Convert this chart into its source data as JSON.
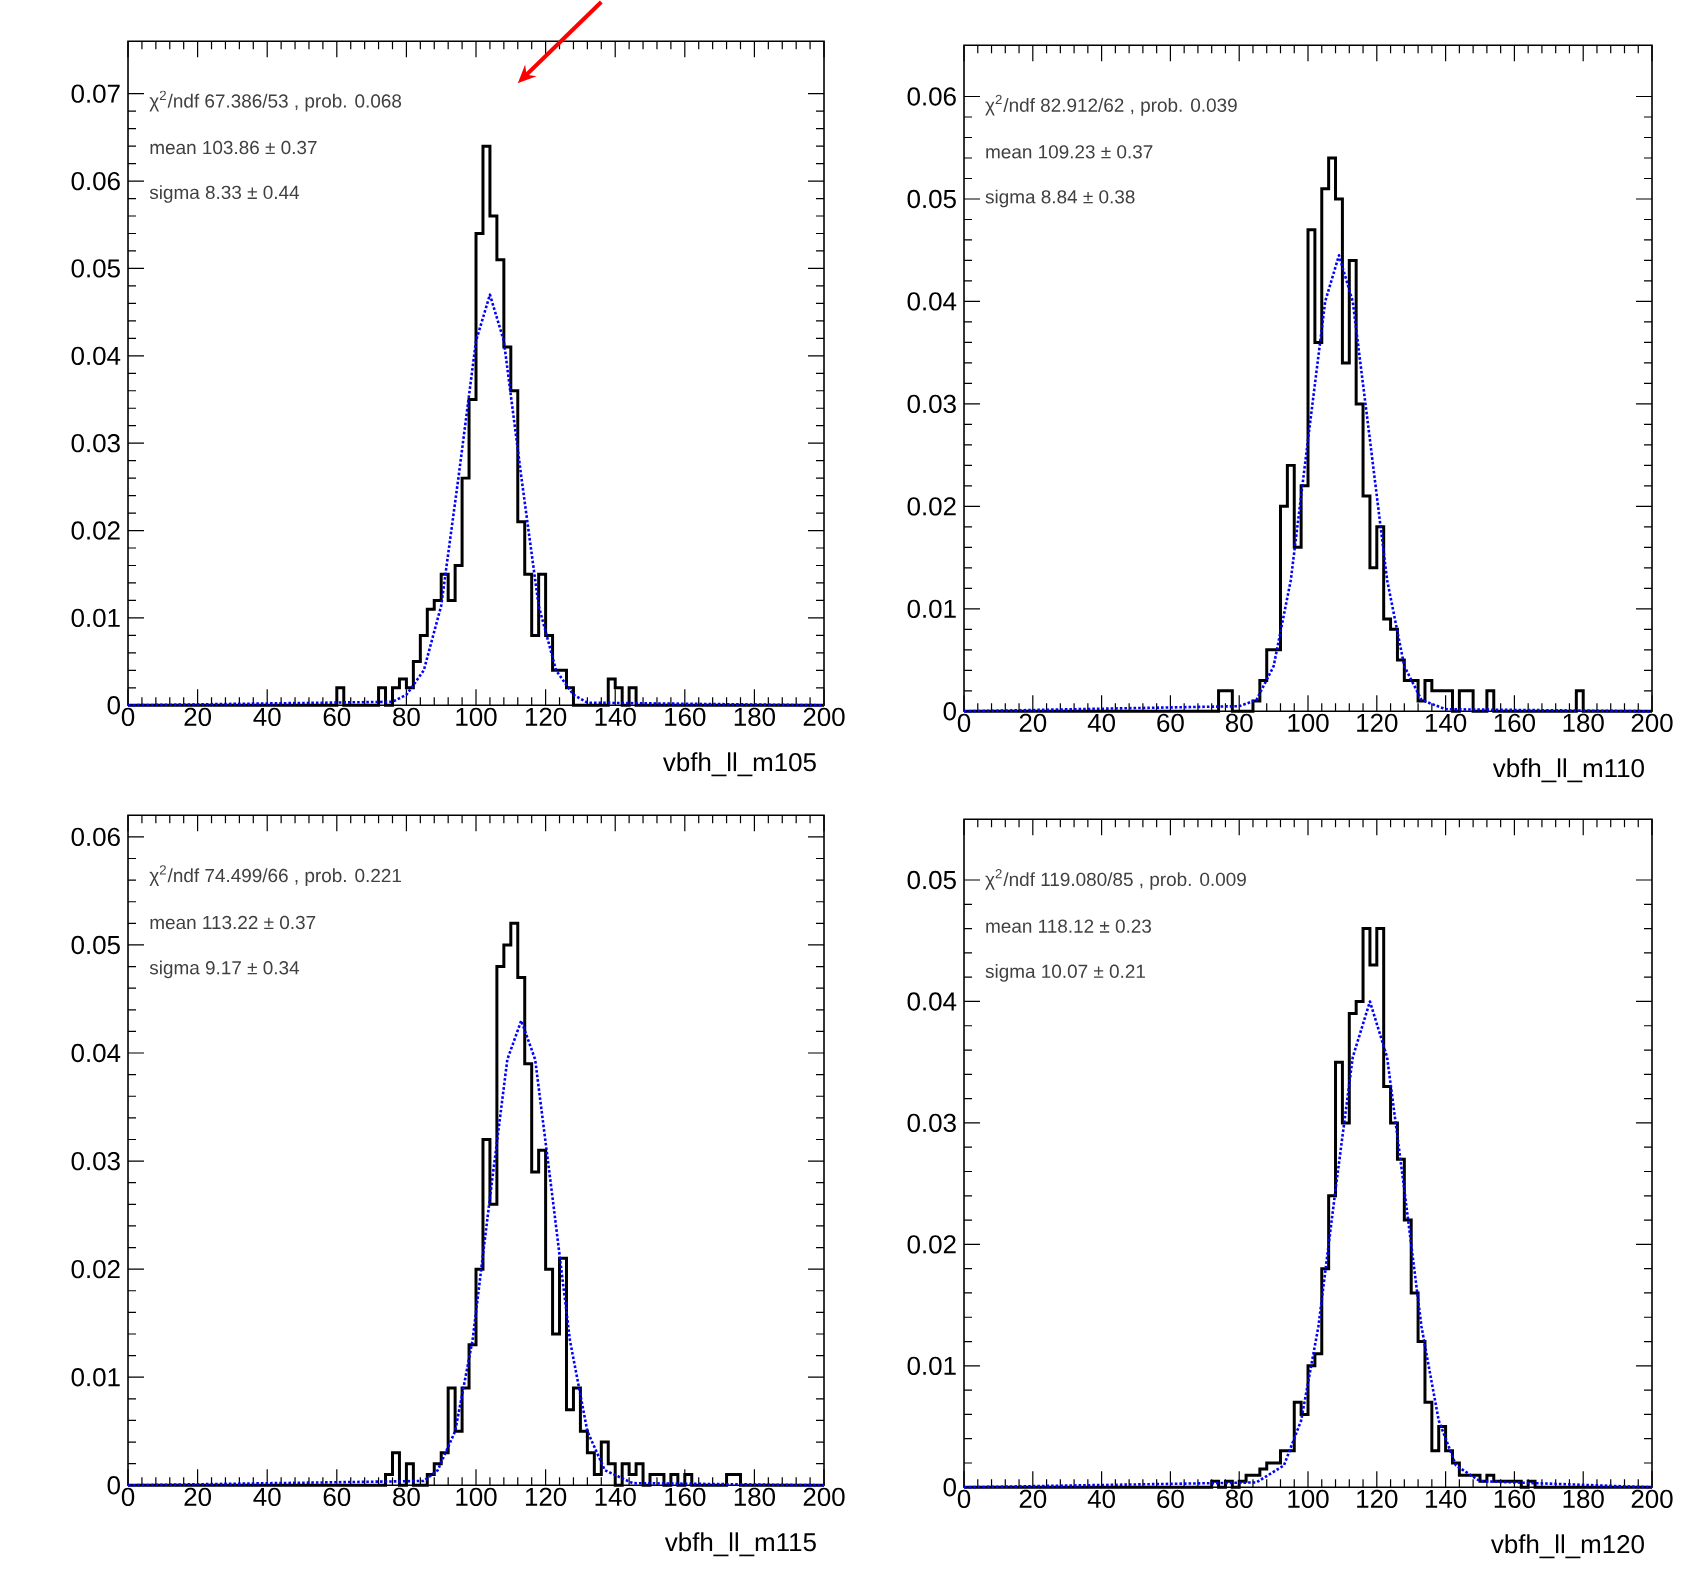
{
  "chart_data": [
    {
      "type": "histogram",
      "xlabel": "vbfh_ll_m105",
      "xlim": [
        0,
        200
      ],
      "xticks": [
        0,
        20,
        40,
        60,
        80,
        100,
        120,
        140,
        160,
        180,
        200
      ],
      "ylim": [
        0,
        0.076
      ],
      "yticks": [
        0,
        0.01,
        0.02,
        0.03,
        0.04,
        0.05,
        0.06,
        0.07
      ],
      "annotations": [
        "χ$^{2}$/ndf  67.386/53 , prob. 0.068",
        "mean  103.86 ± 0.37",
        "sigma   8.33 ± 0.44"
      ],
      "series": [
        {
          "color": "#000000",
          "bins": [
            0,
            58,
            60,
            62,
            64,
            66,
            68,
            70,
            72,
            74,
            76,
            78,
            80,
            82,
            84,
            86,
            88,
            90,
            92,
            94,
            96,
            98,
            100,
            102,
            104,
            106,
            108,
            110,
            112,
            114,
            116,
            118,
            120,
            122,
            124,
            126,
            128,
            130,
            132,
            134,
            136,
            138,
            140,
            142,
            144,
            146,
            200
          ],
          "values": [
            0,
            0,
            0.002,
            0,
            0,
            0,
            0,
            0,
            0.002,
            0,
            0.002,
            0.003,
            0.002,
            0.005,
            0.008,
            0.011,
            0.012,
            0.015,
            0.012,
            0.016,
            0.026,
            0.035,
            0.054,
            0.064,
            0.056,
            0.051,
            0.041,
            0.036,
            0.021,
            0.015,
            0.008,
            0.015,
            0.008,
            0.004,
            0.004,
            0.002,
            0,
            0,
            0,
            0,
            0,
            0.003,
            0.002,
            0,
            0.002,
            0
          ]
        },
        {
          "type": "line",
          "color": "#0000ff",
          "line_style": "dotted",
          "x": [
            0,
            76,
            80,
            85,
            90,
            95,
            100,
            104,
            108,
            113,
            118,
            123,
            128,
            132,
            200
          ],
          "values": [
            0,
            0.0004,
            0.0012,
            0.004,
            0.0114,
            0.0262,
            0.0417,
            0.047,
            0.0417,
            0.0262,
            0.0114,
            0.004,
            0.0012,
            0.0003,
            0
          ]
        }
      ]
    },
    {
      "type": "histogram",
      "xlabel": "vbfh_ll_m110",
      "xlim": [
        0,
        200
      ],
      "xticks": [
        0,
        20,
        40,
        60,
        80,
        100,
        120,
        140,
        160,
        180,
        200
      ],
      "ylim": [
        0,
        0.065
      ],
      "yticks": [
        0,
        0.01,
        0.02,
        0.03,
        0.04,
        0.05,
        0.06
      ],
      "annotations": [
        "χ$^{2}$/ndf  82.912/62 , prob. 0.039",
        "mean  109.23 ± 0.37",
        "sigma   8.84 ± 0.38"
      ],
      "series": [
        {
          "color": "#000000",
          "bins": [
            0,
            74,
            76,
            78,
            80,
            82,
            84,
            86,
            88,
            90,
            92,
            94,
            96,
            98,
            100,
            102,
            104,
            106,
            108,
            110,
            112,
            114,
            116,
            118,
            120,
            122,
            124,
            126,
            128,
            130,
            132,
            134,
            136,
            138,
            140,
            142,
            144,
            146,
            148,
            150,
            152,
            154,
            156,
            158,
            160,
            162,
            164,
            166,
            168,
            170,
            172,
            174,
            176,
            178,
            180,
            182,
            200
          ],
          "values": [
            0,
            0.002,
            0.002,
            0,
            0,
            0,
            0.001,
            0.003,
            0.006,
            0.006,
            0.02,
            0.024,
            0.016,
            0.022,
            0.047,
            0.036,
            0.051,
            0.054,
            0.05,
            0.034,
            0.044,
            0.03,
            0.021,
            0.014,
            0.018,
            0.009,
            0.008,
            0.005,
            0.003,
            0.003,
            0.001,
            0.003,
            0.002,
            0.002,
            0.002,
            0,
            0.002,
            0.002,
            0,
            0,
            0.002,
            0,
            0,
            0,
            0,
            0,
            0,
            0,
            0,
            0,
            0,
            0,
            0,
            0.002,
            0,
            0
          ]
        },
        {
          "type": "line",
          "color": "#0000ff",
          "line_style": "dotted",
          "x": [
            0,
            80,
            85,
            90,
            95,
            100,
            105,
            109,
            113,
            118,
            123,
            128,
            133,
            140,
            200
          ],
          "values": [
            0,
            0.0005,
            0.0011,
            0.0044,
            0.0128,
            0.0265,
            0.04,
            0.0445,
            0.04,
            0.0265,
            0.0128,
            0.0044,
            0.0011,
            0.0002,
            0
          ]
        }
      ]
    },
    {
      "type": "histogram",
      "xlabel": "vbfh_ll_m115",
      "xlim": [
        0,
        200
      ],
      "xticks": [
        0,
        20,
        40,
        60,
        80,
        100,
        120,
        140,
        160,
        180,
        200
      ],
      "ylim": [
        0,
        0.062
      ],
      "yticks": [
        0,
        0.01,
        0.02,
        0.03,
        0.04,
        0.05,
        0.06
      ],
      "annotations": [
        "χ$^{2}$/ndf  74.499/66 , prob. 0.221",
        "mean  113.22 ± 0.37",
        "sigma   9.17 ± 0.34"
      ],
      "series": [
        {
          "color": "#000000",
          "bins": [
            0,
            74,
            76,
            78,
            80,
            82,
            84,
            86,
            88,
            90,
            92,
            94,
            96,
            98,
            100,
            102,
            104,
            106,
            108,
            110,
            112,
            114,
            116,
            118,
            120,
            122,
            124,
            126,
            128,
            130,
            132,
            134,
            136,
            138,
            140,
            142,
            144,
            146,
            148,
            150,
            152,
            154,
            156,
            158,
            160,
            162,
            164,
            166,
            168,
            170,
            172,
            174,
            176,
            178,
            200
          ],
          "values": [
            0,
            0.001,
            0.003,
            0,
            0.002,
            0,
            0,
            0.001,
            0.002,
            0.003,
            0.009,
            0.005,
            0.009,
            0.013,
            0.02,
            0.032,
            0.026,
            0.048,
            0.05,
            0.052,
            0.047,
            0.039,
            0.029,
            0.031,
            0.02,
            0.014,
            0.021,
            0.007,
            0.009,
            0.005,
            0.003,
            0.001,
            0.004,
            0.002,
            0,
            0.002,
            0.001,
            0.002,
            0,
            0.001,
            0.001,
            0,
            0.001,
            0,
            0.001,
            0,
            0,
            0,
            0,
            0,
            0.001,
            0.001,
            0,
            0
          ]
        },
        {
          "type": "line",
          "color": "#0000ff",
          "line_style": "dotted",
          "x": [
            0,
            85,
            89,
            94,
            99,
            104,
            109,
            113,
            117,
            122,
            127,
            132,
            137,
            145,
            200
          ],
          "values": [
            0,
            0.0004,
            0.0014,
            0.005,
            0.0134,
            0.0266,
            0.0394,
            0.043,
            0.0394,
            0.0266,
            0.0134,
            0.005,
            0.0014,
            0.0002,
            0
          ]
        }
      ]
    },
    {
      "type": "histogram",
      "xlabel": "vbfh_ll_m120",
      "xlim": [
        0,
        200
      ],
      "xticks": [
        0,
        20,
        40,
        60,
        80,
        100,
        120,
        140,
        160,
        180,
        200
      ],
      "ylim": [
        0,
        0.055
      ],
      "yticks": [
        0,
        0.01,
        0.02,
        0.03,
        0.04,
        0.05
      ],
      "annotations": [
        "χ$^{2}$/ndf  119.080/85 , prob. 0.009",
        "mean  118.12 ± 0.23",
        "sigma  10.07 ± 0.21"
      ],
      "series": [
        {
          "color": "#000000",
          "bins": [
            0,
            72,
            74,
            76,
            78,
            80,
            82,
            84,
            86,
            88,
            90,
            92,
            94,
            96,
            98,
            100,
            102,
            104,
            106,
            108,
            110,
            112,
            114,
            116,
            118,
            120,
            122,
            124,
            126,
            128,
            130,
            132,
            134,
            136,
            138,
            140,
            142,
            144,
            146,
            148,
            150,
            152,
            154,
            156,
            158,
            160,
            162,
            164,
            166,
            168,
            170,
            200
          ],
          "values": [
            0,
            0.0005,
            0,
            0.0005,
            0,
            0.0005,
            0.001,
            0.001,
            0.0015,
            0.002,
            0.002,
            0.003,
            0.003,
            0.007,
            0.006,
            0.01,
            0.011,
            0.018,
            0.024,
            0.035,
            0.03,
            0.039,
            0.04,
            0.046,
            0.043,
            0.046,
            0.033,
            0.03,
            0.027,
            0.022,
            0.016,
            0.012,
            0.007,
            0.003,
            0.005,
            0.003,
            0.002,
            0.001,
            0.001,
            0.001,
            0.0005,
            0.001,
            0.0005,
            0.0005,
            0.0005,
            0.0005,
            0,
            0.0005,
            0,
            0,
            0
          ]
        },
        {
          "type": "line",
          "color": "#0000ff",
          "line_style": "dotted",
          "x": [
            0,
            85,
            93,
            98,
            103,
            108,
            113,
            118,
            123,
            128,
            133,
            138,
            143,
            150,
            200
          ],
          "values": [
            0,
            0.0004,
            0.0018,
            0.0055,
            0.0132,
            0.0245,
            0.0354,
            0.04,
            0.0354,
            0.0245,
            0.0132,
            0.0055,
            0.0018,
            0.0005,
            0
          ]
        }
      ]
    }
  ]
}
